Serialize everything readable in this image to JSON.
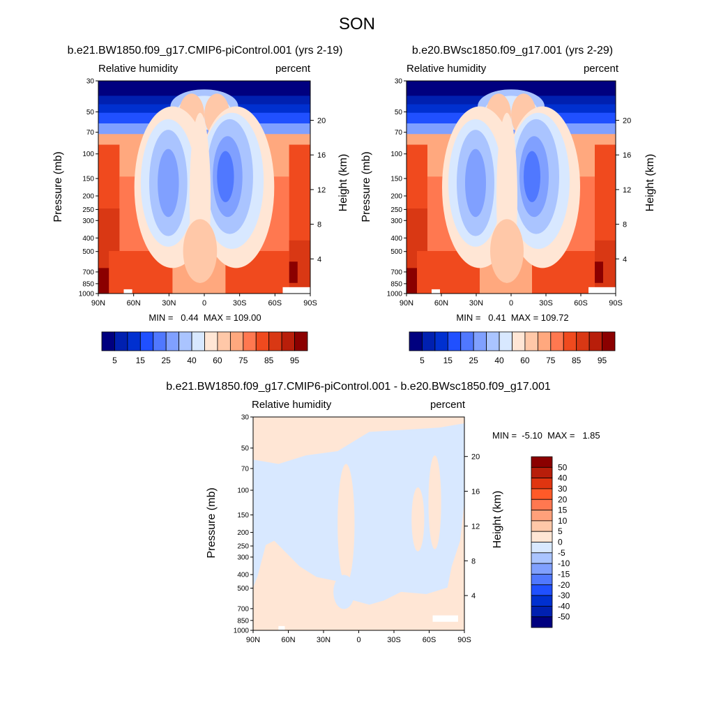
{
  "chart_data": {
    "type": "heatmap",
    "figure_title": "SON",
    "yticks_p": [
      "30",
      "50",
      "70",
      "100",
      "150",
      "200",
      "250",
      "300",
      "400",
      "500",
      "700",
      "850",
      "1000"
    ],
    "yticks_h": [
      "20",
      "16",
      "12",
      "8",
      "4"
    ],
    "xticks": [
      "90N",
      "60N",
      "30N",
      "0",
      "30S",
      "60S",
      "90S"
    ],
    "panels": [
      {
        "title": "b.e21.BW1850.f09_g17.CMIP6-piControl.001 (yrs 2-19)",
        "left_label": "Relative humidity",
        "right_label": "percent",
        "ylabel": "Pressure (mb)",
        "y2label": "Height (km)",
        "minmax": "MIN =   0.44  MAX = 109.00",
        "xlim": [
          -90,
          90
        ],
        "ylim": [
          1000,
          30
        ]
      },
      {
        "title": "b.e20.BWsc1850.f09_g17.001 (yrs 2-29)",
        "left_label": "Relative humidity",
        "right_label": "percent",
        "ylabel": "Pressure (mb)",
        "y2label": "Height (km)",
        "minmax": "MIN =   0.41  MAX = 109.72",
        "xlim": [
          -90,
          90
        ],
        "ylim": [
          1000,
          30
        ]
      },
      {
        "title": "b.e21.BW1850.f09_g17.CMIP6-piControl.001 - b.e20.BWsc1850.f09_g17.001",
        "left_label": "Relative humidity",
        "right_label": "percent",
        "ylabel": "Pressure (mb)",
        "y2label": "Height (km)",
        "minmax": "MIN =  -5.10  MAX =   1.85",
        "xlim": [
          -90,
          90
        ],
        "ylim": [
          1000,
          30
        ]
      }
    ],
    "colorbar_main": {
      "labels": [
        "5",
        "15",
        "25",
        "40",
        "60",
        "75",
        "85",
        "95"
      ],
      "colors": [
        "#00007f",
        "#0020b0",
        "#0030d0",
        "#2050ff",
        "#5078ff",
        "#80a0ff",
        "#aac4ff",
        "#d8e8ff",
        "#ffe6d5",
        "#ffc8a8",
        "#ffa87e",
        "#ff7850",
        "#f04a1e",
        "#d93814",
        "#b81e0a",
        "#8b0000"
      ]
    },
    "colorbar_diff": {
      "labels": [
        "50",
        "40",
        "30",
        "20",
        "15",
        "10",
        "5",
        "0",
        "-5",
        "-10",
        "-15",
        "-20",
        "-30",
        "-40",
        "-50"
      ],
      "colors": [
        "#8b0000",
        "#b81e0a",
        "#e03510",
        "#ff5a28",
        "#ff7850",
        "#ffa07a",
        "#ffc8a8",
        "#ffe6d5",
        "#d8e8ff",
        "#aac4ff",
        "#80a0ff",
        "#5078ff",
        "#2050ff",
        "#0030d0",
        "#0020b0",
        "#00007f"
      ]
    },
    "field_colors": {
      "wet_high": "#8b0000",
      "wet_mid": "#d93814",
      "wet": "#f04a1e",
      "moist": "#ff7850",
      "mild": "#ffa87e",
      "near": "#ffc8a8",
      "neutral_warm": "#ffe6d5",
      "neutral_cool": "#d8e8ff",
      "dry1": "#aac4ff",
      "dry2": "#80a0ff",
      "dry3": "#5078ff",
      "dry4": "#2050ff",
      "strat1": "#0030d0",
      "strat2": "#0020b0",
      "strat3": "#00007f"
    }
  }
}
